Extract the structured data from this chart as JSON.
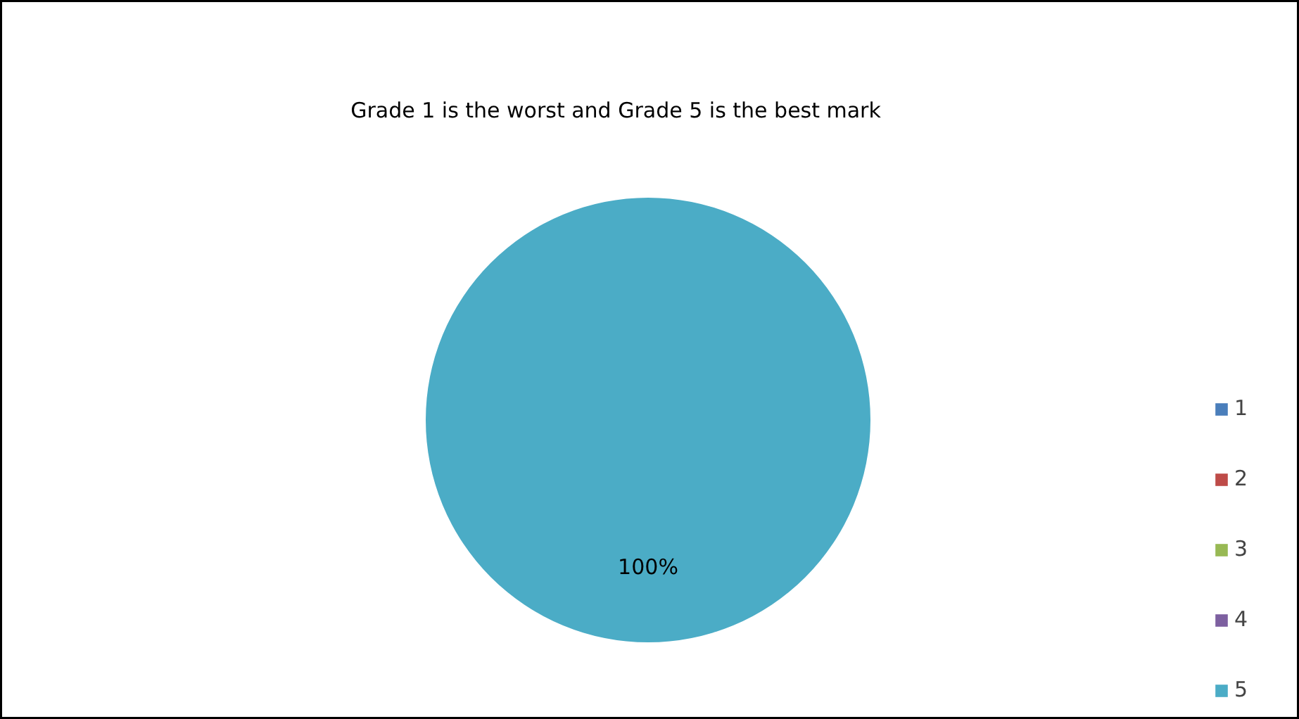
{
  "chart_data": {
    "type": "pie",
    "title": "Grade 1 is the worst and Grade 5 is the best mark",
    "categories": [
      "1",
      "2",
      "3",
      "4",
      "5"
    ],
    "values": [
      0,
      0,
      0,
      0,
      100
    ],
    "colors": [
      "#4a7ebb",
      "#be4b48",
      "#98b954",
      "#7d60a0",
      "#4bacc6"
    ],
    "value_labels": [
      null,
      null,
      null,
      null,
      "100%"
    ],
    "legend": "right"
  }
}
